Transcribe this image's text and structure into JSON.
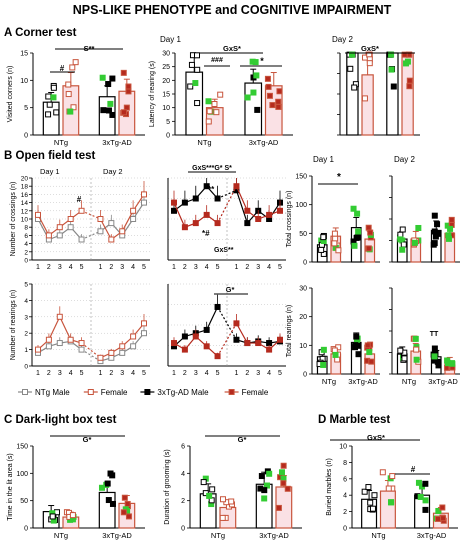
{
  "figure_title": "NPS-LIKE PHENOTYPE and COGNITIVE IMPAIRMENT",
  "colors": {
    "ntg_male": "#000000",
    "ntg_female": "#c8553d",
    "tg_male": "#000000",
    "tg_female": "#b52a1e",
    "green": "#33cc33",
    "pink_fill": "#f6c9cf",
    "grid": "#bbbbbb"
  },
  "legend": [
    {
      "label": "NTg Male",
      "marker": "square-open",
      "line": "solid"
    },
    {
      "label": "Female",
      "marker": "square-open-red",
      "line": "solid"
    },
    {
      "label": "3xTg-AD Male",
      "marker": "square-filled",
      "line": "solid"
    },
    {
      "label": "Female",
      "marker": "square-filled-red",
      "line": "solid"
    }
  ],
  "panel_a": {
    "title": "A Corner test",
    "sig_main": "S**",
    "sig_pair": "#",
    "sig_day1": "GxS*",
    "sig_day1_pair": "###",
    "sig_day1_pair2": "*",
    "sig_day2": "GxS*",
    "day1_label": "Day 1",
    "day2_label": "Day 2"
  },
  "panel_b": {
    "title": "B Open field test",
    "day1_label": "Day 1",
    "day2_label": "Day 2",
    "sig_ntg_cross": "#",
    "sig_tg_cross": "GxS***G* S*",
    "sig_tg_cross_a": "**",
    "sig_tg_cross_b": "*#",
    "sig_tg_cross_c": "GxS**",
    "sig_tg_rear": "G*",
    "sig_total_cross": "*",
    "sig_total_rear": "TT"
  },
  "panel_c": {
    "title": "C Dark-light box test",
    "sig_left": "G*",
    "sig_right": "G*"
  },
  "panel_d": {
    "title": "D Marble test",
    "sig_main": "GxS*",
    "sig_pair": "#"
  },
  "chart_data": [
    {
      "id": "a_corners",
      "type": "bar",
      "panel": "A",
      "categories": [
        "NTg",
        "3xTg-AD"
      ],
      "ylabel": "Visited corners (n)",
      "ylim": [
        0,
        15
      ],
      "yticks": [
        0,
        5,
        10,
        15
      ],
      "series": [
        {
          "name": "Male",
          "values": [
            6,
            7
          ]
        },
        {
          "name": "Female",
          "values": [
            9,
            8
          ]
        }
      ]
    },
    {
      "id": "a_latency_day1",
      "type": "bar",
      "panel": "A",
      "categories": [
        "NTg",
        "3xTg-AD"
      ],
      "ylabel": "Latency of rearing (s)",
      "ylim": [
        0,
        30
      ],
      "yticks": [
        0,
        5,
        10,
        15,
        20,
        25,
        30
      ],
      "series": [
        {
          "name": "Male",
          "values": [
            23,
            19
          ]
        },
        {
          "name": "Female",
          "values": [
            10,
            18
          ]
        }
      ]
    },
    {
      "id": "a_latency_day2",
      "type": "bar",
      "panel": "A",
      "categories": [
        "NTg",
        "3xTg-AD"
      ],
      "ylim": [
        0,
        30
      ],
      "series": [
        {
          "name": "Male",
          "values": [
            30,
            30
          ]
        },
        {
          "name": "Female",
          "values": [
            22,
            30
          ]
        }
      ]
    },
    {
      "id": "b_ntg_cross",
      "type": "line",
      "panel": "B",
      "x": [
        "1",
        "2",
        "3",
        "4",
        "5",
        "1",
        "2",
        "3",
        "4",
        "5"
      ],
      "ylabel": "Number of crossings (n)",
      "ylim": [
        0,
        20
      ],
      "yticks": [
        0,
        2,
        4,
        6,
        8,
        10,
        12,
        14,
        16,
        18,
        20
      ],
      "series": [
        {
          "name": "NTg Male",
          "values": [
            10,
            5,
            6,
            8,
            5,
            7,
            9,
            6,
            10,
            14
          ]
        },
        {
          "name": "Female",
          "values": [
            11,
            6,
            8,
            10,
            12,
            10,
            5,
            7,
            12,
            16
          ]
        }
      ]
    },
    {
      "id": "b_tg_cross",
      "type": "line",
      "panel": "B",
      "x": [
        "1",
        "2",
        "3",
        "4",
        "5",
        "1",
        "2",
        "3",
        "4",
        "5"
      ],
      "ylim": [
        0,
        20
      ],
      "series": [
        {
          "name": "3xTg-AD Male",
          "values": [
            12,
            14,
            15,
            18,
            15,
            17,
            9,
            12,
            10,
            14
          ]
        },
        {
          "name": "Female",
          "values": [
            14,
            8,
            9,
            11,
            9,
            18,
            12,
            10,
            11,
            12
          ]
        }
      ]
    },
    {
      "id": "b_ntg_rear",
      "type": "line",
      "panel": "B",
      "x": [
        "1",
        "2",
        "3",
        "4",
        "5",
        "1",
        "2",
        "3",
        "4",
        "5"
      ],
      "ylabel": "Number of rearings (n)",
      "ylim": [
        0,
        5
      ],
      "yticks": [
        0,
        1,
        2,
        3,
        4,
        5
      ],
      "series": [
        {
          "name": "NTg Male",
          "values": [
            0.8,
            1.2,
            1.4,
            1.5,
            1.0,
            0.3,
            0.5,
            0.8,
            1.2,
            2.0
          ]
        },
        {
          "name": "Female",
          "values": [
            1.0,
            1.6,
            3.0,
            1.6,
            1.4,
            0.5,
            0.8,
            1.2,
            1.8,
            2.6
          ]
        }
      ]
    },
    {
      "id": "b_tg_rear",
      "type": "line",
      "panel": "B",
      "x": [
        "1",
        "2",
        "3",
        "4",
        "5",
        "1",
        "2",
        "3",
        "4",
        "5"
      ],
      "ylim": [
        0,
        5
      ],
      "series": [
        {
          "name": "3xTg-AD Male",
          "values": [
            1.2,
            1.8,
            2.0,
            2.2,
            3.6,
            1.6,
            1.4,
            1.5,
            1.4,
            1.5
          ]
        },
        {
          "name": "Female",
          "values": [
            1.4,
            1.0,
            1.8,
            1.2,
            0.6,
            2.6,
            1.4,
            1.4,
            1.0,
            1.6
          ]
        }
      ]
    },
    {
      "id": "b_total_cross_day1",
      "type": "bar",
      "panel": "B",
      "categories": [
        "NTg",
        "3xTg-AD"
      ],
      "ylabel": "Total crossings (n)",
      "ylim": [
        0,
        150
      ],
      "yticks": [
        0,
        50,
        100,
        150
      ],
      "series": [
        {
          "name": "Male",
          "values": [
            30,
            60
          ]
        },
        {
          "name": "Female",
          "values": [
            45,
            40
          ]
        }
      ]
    },
    {
      "id": "b_total_cross_day2",
      "type": "bar",
      "panel": "B",
      "categories": [
        "NTg",
        "3xTg-AD"
      ],
      "ylim": [
        0,
        150
      ],
      "series": [
        {
          "name": "Male",
          "values": [
            40,
            55
          ]
        },
        {
          "name": "Female",
          "values": [
            40,
            50
          ]
        }
      ]
    },
    {
      "id": "b_total_rear_day1",
      "type": "bar",
      "panel": "B",
      "categories": [
        "NTg",
        "3xTg-AD"
      ],
      "ylabel": "Total rearings (n)",
      "ylim": [
        0,
        30
      ],
      "yticks": [
        0,
        10,
        20,
        30
      ],
      "series": [
        {
          "name": "Male",
          "values": [
            6,
            11
          ]
        },
        {
          "name": "Female",
          "values": [
            7,
            7
          ]
        }
      ]
    },
    {
      "id": "b_total_rear_day2",
      "type": "bar",
      "panel": "B",
      "categories": [
        "NTg",
        "3xTg-AD"
      ],
      "ylim": [
        0,
        30
      ],
      "series": [
        {
          "name": "Male",
          "values": [
            7,
            6
          ]
        },
        {
          "name": "Female",
          "values": [
            8,
            4
          ]
        }
      ]
    },
    {
      "id": "c_time_lit",
      "type": "bar",
      "panel": "C",
      "categories": [
        "NTg",
        "3xTg-AD"
      ],
      "ylabel": "Time in the lit area (s)",
      "ylim": [
        0,
        150
      ],
      "yticks": [
        0,
        50,
        100,
        150
      ],
      "series": [
        {
          "name": "Male",
          "values": [
            30,
            65
          ]
        },
        {
          "name": "Female",
          "values": [
            20,
            45
          ]
        }
      ]
    },
    {
      "id": "c_grooming",
      "type": "bar",
      "panel": "C",
      "categories": [
        "NTg",
        "3xTg-AD"
      ],
      "ylabel": "Duration of grooming (s)",
      "ylim": [
        0,
        6
      ],
      "yticks": [
        0,
        2,
        4,
        6
      ],
      "series": [
        {
          "name": "Male",
          "values": [
            2.5,
            3.2
          ]
        },
        {
          "name": "Female",
          "values": [
            1.5,
            3.0
          ]
        }
      ]
    },
    {
      "id": "d_marbles",
      "type": "bar",
      "panel": "D",
      "categories": [
        "NTg",
        "3xTg-AD"
      ],
      "ylabel": "Buried marbles (n)",
      "ylim": [
        0,
        10
      ],
      "yticks": [
        0,
        2,
        4,
        6,
        8,
        10
      ],
      "series": [
        {
          "name": "Male",
          "values": [
            3.5,
            4.0
          ]
        },
        {
          "name": "Female",
          "values": [
            4.5,
            1.8
          ]
        }
      ]
    }
  ]
}
